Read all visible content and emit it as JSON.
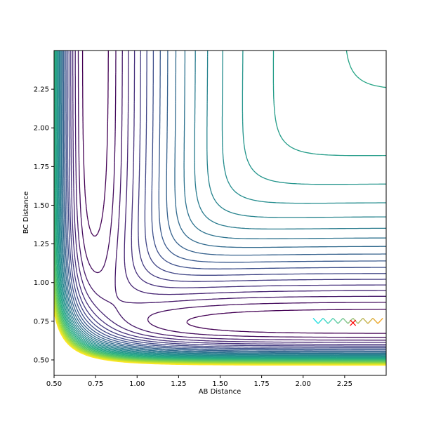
{
  "chart_data": {
    "type": "contour",
    "title": "",
    "xlabel": "AB Distance",
    "ylabel": "BC Distance",
    "xlim": [
      0.5,
      2.5
    ],
    "ylim": [
      0.4,
      2.5
    ],
    "x_ticks": [
      0.5,
      0.75,
      1.0,
      1.25,
      1.5,
      1.75,
      2.0,
      2.25
    ],
    "x_tick_labels": [
      "0.50",
      "0.75",
      "1.00",
      "1.25",
      "1.50",
      "1.75",
      "2.00",
      "2.25"
    ],
    "y_ticks": [
      0.5,
      0.75,
      1.0,
      1.25,
      1.5,
      1.75,
      2.0,
      2.25
    ],
    "y_tick_labels": [
      "0.50",
      "0.75",
      "1.00",
      "1.25",
      "1.50",
      "1.75",
      "2.00",
      "2.25"
    ],
    "colormap": "viridis",
    "colormap_stops": [
      "#440154",
      "#472c7a",
      "#3b518b",
      "#2c718e",
      "#21908d",
      "#27ad81",
      "#5cc863",
      "#aadc32",
      "#fde725"
    ],
    "contour_levels": 30,
    "grid": false,
    "legend": "none",
    "trajectory": {
      "start_color": "#1de0e3",
      "end_color": "#f5a623",
      "points": [
        [
          2.06,
          0.77
        ],
        [
          2.09,
          0.735
        ],
        [
          2.12,
          0.77
        ],
        [
          2.15,
          0.735
        ],
        [
          2.18,
          0.77
        ],
        [
          2.21,
          0.735
        ],
        [
          2.24,
          0.77
        ],
        [
          2.27,
          0.735
        ],
        [
          2.3,
          0.77
        ],
        [
          2.33,
          0.735
        ],
        [
          2.36,
          0.77
        ],
        [
          2.39,
          0.735
        ],
        [
          2.42,
          0.77
        ],
        [
          2.45,
          0.735
        ],
        [
          2.48,
          0.77
        ]
      ]
    },
    "marker": {
      "x": 2.3,
      "y": 0.74,
      "symbol": "x",
      "color": "#ff0000"
    }
  }
}
